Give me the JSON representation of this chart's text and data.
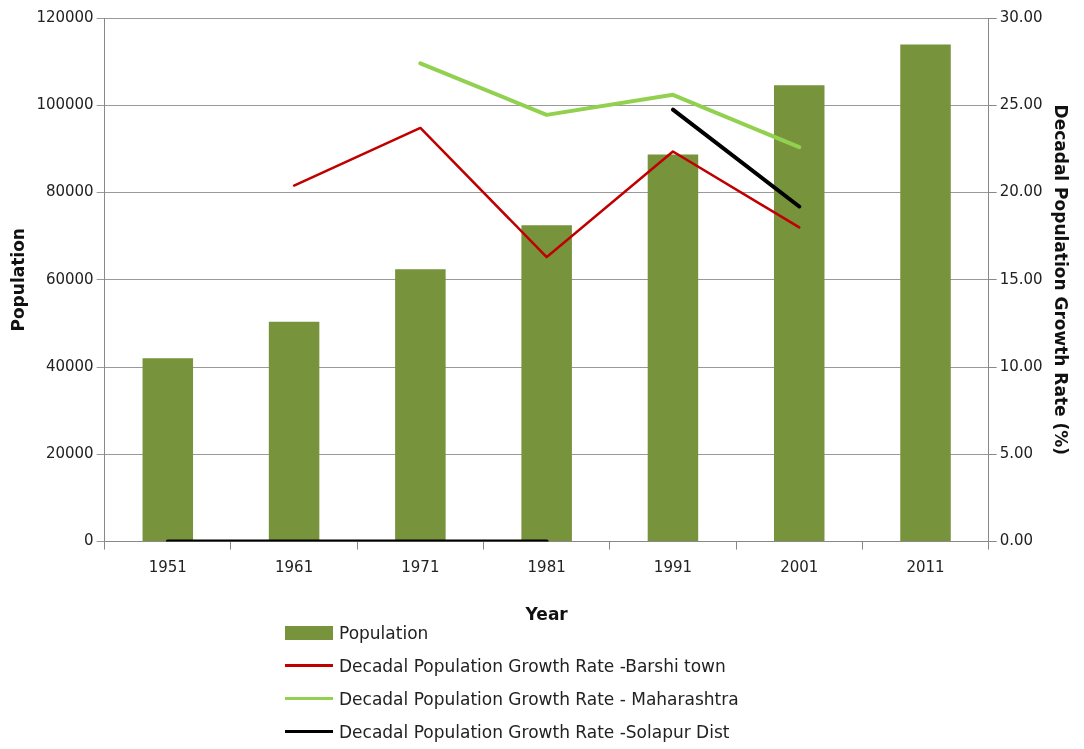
{
  "chart_data": {
    "type": "bar",
    "xlabel": "Year",
    "ylabel": "Population",
    "y2label": "Decadal Population Growth Rate (%)",
    "categories": [
      "1951",
      "1961",
      "1971",
      "1981",
      "1991",
      "2001",
      "2011"
    ],
    "series": [
      {
        "name": "Population",
        "color": "#77933c",
        "values": [
          42000,
          50400,
          62400,
          72500,
          88700,
          104600,
          113900
        ]
      },
      {
        "name": "Decadal Population Growth Rate -Barshi town",
        "type": "line",
        "axis": "y2",
        "color": "#c00000",
        "values": [
          null,
          20.4,
          23.7,
          16.3,
          22.35,
          18.0,
          null
        ]
      },
      {
        "name": "Decadal Population Growth Rate - Maharashtra",
        "type": "line",
        "axis": "y2",
        "color": "#92d050",
        "values": [
          null,
          null,
          27.4,
          24.45,
          25.6,
          22.6,
          null
        ]
      },
      {
        "name": "Decadal Population Growth Rate -Solapur Dist",
        "type": "line",
        "axis": "y2",
        "color": "#000000",
        "values": [
          0,
          0,
          0,
          0,
          null,
          null,
          null
        ]
      },
      {
        "type": "line",
        "axis": "y2",
        "color": "#000000",
        "values": [
          null,
          null,
          null,
          null,
          24.75,
          19.2,
          null
        ]
      }
    ],
    "ylim": [
      0,
      120000
    ],
    "yticks": [
      0,
      20000,
      40000,
      60000,
      80000,
      100000,
      120000
    ],
    "y2lim": [
      0,
      30
    ],
    "y2ticks": [
      {
        "value": 0,
        "label": "0.00"
      },
      {
        "value": 5,
        "label": "5.00"
      },
      {
        "value": 10,
        "label": "10.00"
      },
      {
        "value": 15,
        "label": "15.00"
      },
      {
        "value": 20,
        "label": "20.00"
      },
      {
        "value": 25,
        "label": "25.00"
      },
      {
        "value": 30,
        "label": "30.00"
      }
    ],
    "grid": "y",
    "legend": "bottom",
    "marker": "none"
  }
}
